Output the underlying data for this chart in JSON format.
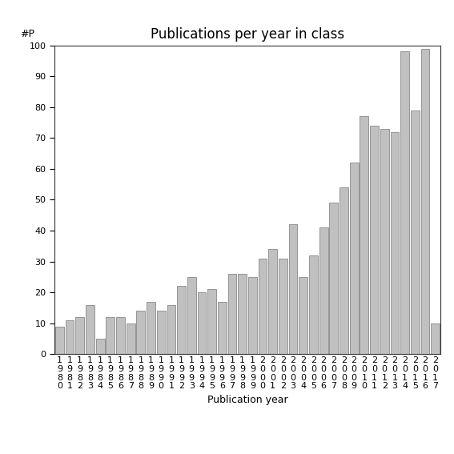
{
  "title": "Publications per year in class",
  "xlabel": "Publication year",
  "ylabel": "#P",
  "years": [
    "1980",
    "1981",
    "1982",
    "1983",
    "1984",
    "1985",
    "1986",
    "1987",
    "1988",
    "1989",
    "1990",
    "1991",
    "1992",
    "1993",
    "1994",
    "1995",
    "1996",
    "1997",
    "1998",
    "1999",
    "2000",
    "2001",
    "2002",
    "2003",
    "2004",
    "2005",
    "2006",
    "2007",
    "2008",
    "2009",
    "2010",
    "2011",
    "2012",
    "2013",
    "2014",
    "2015",
    "2016",
    "2017"
  ],
  "values": [
    9,
    11,
    12,
    16,
    5,
    12,
    12,
    10,
    14,
    17,
    14,
    16,
    22,
    25,
    20,
    21,
    17,
    26,
    26,
    25,
    31,
    34,
    31,
    42,
    25,
    32,
    41,
    49,
    54,
    62,
    77,
    74,
    73,
    72,
    98,
    79,
    99,
    10
  ],
  "bar_color": "#c0c0c0",
  "bar_edge_color": "#888888",
  "ylim": [
    0,
    100
  ],
  "yticks": [
    0,
    10,
    20,
    30,
    40,
    50,
    60,
    70,
    80,
    90,
    100
  ],
  "background_color": "#ffffff",
  "title_fontsize": 12,
  "axis_label_fontsize": 9,
  "tick_fontsize": 8
}
